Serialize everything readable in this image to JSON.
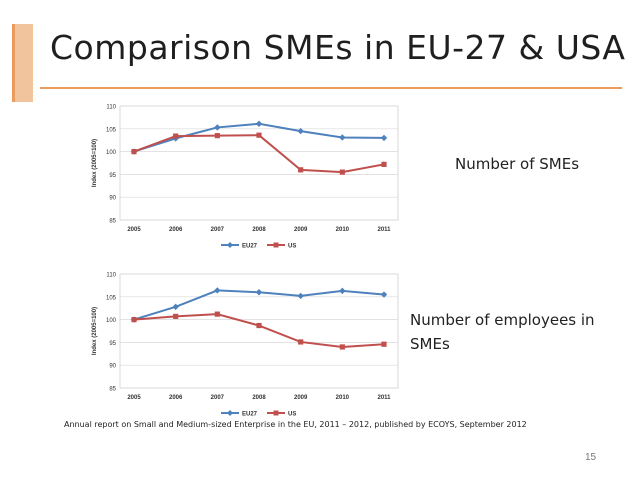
{
  "slide": {
    "title": "Comparison SMEs in EU-27 & USA",
    "label_chart1": "Number of SMEs",
    "label_chart2": "Number of employees in SMEs",
    "source": "Annual report on  Small and Medium-sized Enterprise in the EU, 2011 – 2012, published by ECOYS, September 2012",
    "page_number": "15",
    "accent_color": "#ea9b5e"
  },
  "chart_data": [
    {
      "type": "line",
      "title": "",
      "xlabel": "",
      "ylabel": "Index (2005=100)",
      "categories": [
        "2005",
        "2006",
        "2007",
        "2008",
        "2009",
        "2010",
        "2011"
      ],
      "ylim": [
        85,
        110
      ],
      "yticks": [
        85,
        90,
        95,
        100,
        105,
        110
      ],
      "grid": true,
      "legend": "bottom",
      "series": [
        {
          "name": "EU27",
          "color": "#4f81bd",
          "marker": "diamond",
          "values": [
            100,
            102.9,
            105.3,
            106.1,
            104.5,
            103.1,
            103.0
          ]
        },
        {
          "name": "US",
          "color": "#c0504d",
          "marker": "square",
          "values": [
            100,
            103.4,
            103.5,
            103.6,
            96.0,
            95.5,
            97.2
          ]
        }
      ]
    },
    {
      "type": "line",
      "title": "",
      "xlabel": "",
      "ylabel": "Index (2005=100)",
      "categories": [
        "2005",
        "2006",
        "2007",
        "2008",
        "2009",
        "2010",
        "2011"
      ],
      "ylim": [
        85,
        110
      ],
      "yticks": [
        85,
        90,
        95,
        100,
        105,
        110
      ],
      "grid": true,
      "legend": "bottom",
      "series": [
        {
          "name": "EU27",
          "color": "#4f81bd",
          "marker": "diamond",
          "values": [
            100,
            102.8,
            106.4,
            106.0,
            105.2,
            106.3,
            105.5
          ]
        },
        {
          "name": "US",
          "color": "#c0504d",
          "marker": "square",
          "values": [
            100,
            100.7,
            101.2,
            98.7,
            95.1,
            94.0,
            94.6
          ]
        }
      ]
    }
  ]
}
